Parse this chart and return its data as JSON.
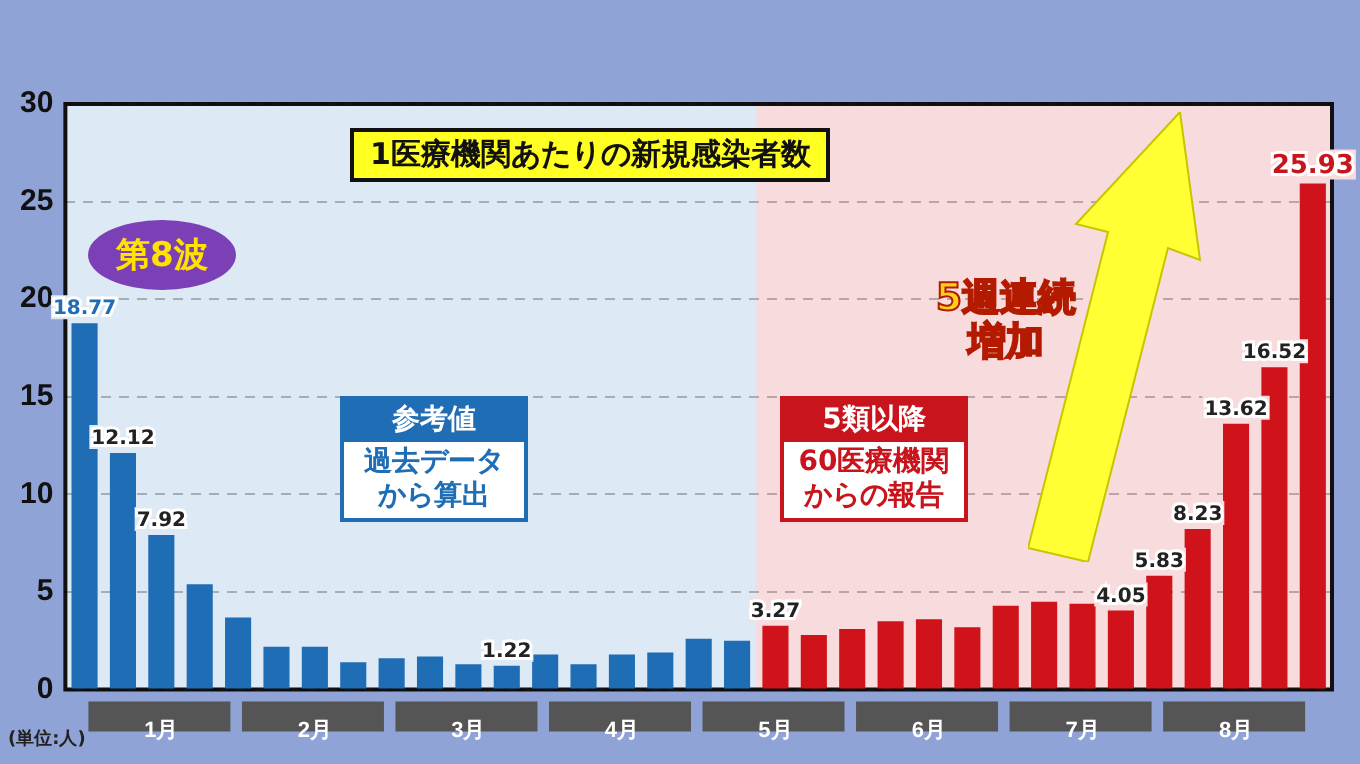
{
  "chart_data": {
    "type": "bar",
    "title": "1医療機関あたりの新規感染者数",
    "categories": [
      null,
      null,
      "1月",
      null,
      null,
      null,
      "2月",
      null,
      null,
      null,
      "3月",
      null,
      null,
      null,
      "4月",
      null,
      null,
      null,
      "5月",
      null,
      null,
      null,
      "6月",
      null,
      null,
      null,
      "7月",
      null,
      null,
      null,
      "8月",
      null,
      null
    ],
    "values": [
      18.77,
      12.12,
      7.92,
      5.4,
      3.7,
      2.2,
      2.2,
      1.4,
      1.6,
      1.7,
      1.3,
      1.22,
      1.8,
      1.3,
      1.8,
      1.9,
      2.6,
      2.5,
      3.27,
      2.8,
      3.1,
      3.5,
      3.6,
      3.2,
      4.3,
      4.5,
      4.4,
      4.05,
      5.83,
      8.23,
      13.62,
      16.52,
      25.93
    ],
    "colors": [
      "#1f6db5",
      "#1f6db5",
      "#1f6db5",
      "#1f6db5",
      "#1f6db5",
      "#1f6db5",
      "#1f6db5",
      "#1f6db5",
      "#1f6db5",
      "#1f6db5",
      "#1f6db5",
      "#1f6db5",
      "#1f6db5",
      "#1f6db5",
      "#1f6db5",
      "#1f6db5",
      "#1f6db5",
      "#1f6db5",
      "#d0121b",
      "#d0121b",
      "#d0121b",
      "#d0121b",
      "#d0121b",
      "#d0121b",
      "#d0121b",
      "#d0121b",
      "#d0121b",
      "#d0121b",
      "#d0121b",
      "#d0121b",
      "#d0121b",
      "#d0121b",
      "#d0121b"
    ],
    "value_labels": [
      "18.77",
      "12.12",
      "7.92",
      null,
      null,
      null,
      null,
      null,
      null,
      null,
      null,
      "1.22",
      null,
      null,
      null,
      null,
      null,
      null,
      "3.27",
      null,
      null,
      null,
      null,
      null,
      null,
      null,
      null,
      "4.05",
      "5.83",
      "8.23",
      "13.62",
      "16.52",
      "25.93"
    ],
    "ylim": [
      0,
      30
    ],
    "yticks": [
      0,
      5,
      10,
      15,
      20,
      25,
      30
    ],
    "grid": "y",
    "legend": false,
    "annotations": [
      "第8波",
      "参考値",
      "過去データから算出",
      "5類以降",
      "60医療機関からの報告",
      "5週連続増加",
      "(単位:人)"
    ]
  }
}
